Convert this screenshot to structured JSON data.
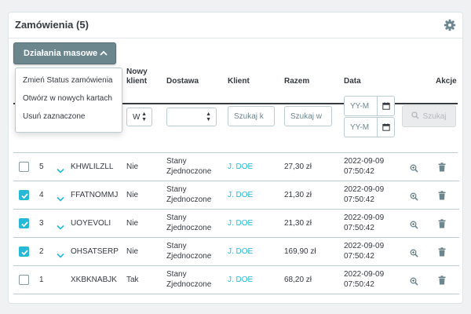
{
  "panel": {
    "title": "Zamówienia (5)"
  },
  "bulk_actions": {
    "label": "Działania masowe",
    "items": [
      "Zmień Status zamówienia",
      "Otwórz w nowych kartach",
      "Usuń zaznaczone"
    ]
  },
  "columns": {
    "new_client": [
      "Nowy",
      "klient"
    ],
    "delivery": "Dostawa",
    "client": "Klient",
    "total": "Razem",
    "date": "Data",
    "actions": "Akcje"
  },
  "filters": {
    "new_client_select": "W",
    "client_placeholder": "Szukaj k",
    "total_placeholder": "Szukaj w",
    "date_from_placeholder": "YY-M",
    "date_to_placeholder": "YY-M",
    "search_button": "Szukaj"
  },
  "rows": [
    {
      "id": "5",
      "checked": false,
      "expandable": true,
      "reference": "KHWLILZLL",
      "new_client": "Nie",
      "delivery": [
        "Stany",
        "Zjednoczone"
      ],
      "client": "J. DOE",
      "total": "27,30 zł",
      "date": "2022-09-09",
      "time": "07:50:42"
    },
    {
      "id": "4",
      "checked": true,
      "expandable": true,
      "reference": "FFATNOMMJ",
      "new_client": "Nie",
      "delivery": [
        "Stany",
        "Zjednoczone"
      ],
      "client": "J. DOE",
      "total": "21,30 zł",
      "date": "2022-09-09",
      "time": "07:50:42"
    },
    {
      "id": "3",
      "checked": true,
      "expandable": true,
      "reference": "UOYEVOLI",
      "new_client": "Nie",
      "delivery": [
        "Stany",
        "Zjednoczone"
      ],
      "client": "J. DOE",
      "total": "21,30 zł",
      "date": "2022-09-09",
      "time": "07:50:42"
    },
    {
      "id": "2",
      "checked": true,
      "expandable": true,
      "reference": "OHSATSERP",
      "new_client": "Nie",
      "delivery": [
        "Stany",
        "Zjednoczone"
      ],
      "client": "J. DOE",
      "total": "169,90 zł",
      "date": "2022-09-09",
      "time": "07:50:42"
    },
    {
      "id": "1",
      "checked": false,
      "expandable": false,
      "reference": "XKBKNABJK",
      "new_client": "Tak",
      "delivery": [
        "Stany",
        "Zjednoczone"
      ],
      "client": "J. DOE",
      "total": "68,20 zł",
      "date": "2022-09-09",
      "time": "07:50:42"
    }
  ],
  "colors": {
    "accent": "#25b9d7",
    "bulk_button": "#6c868e",
    "text": "#363a41",
    "border": "#bbcdd2"
  }
}
